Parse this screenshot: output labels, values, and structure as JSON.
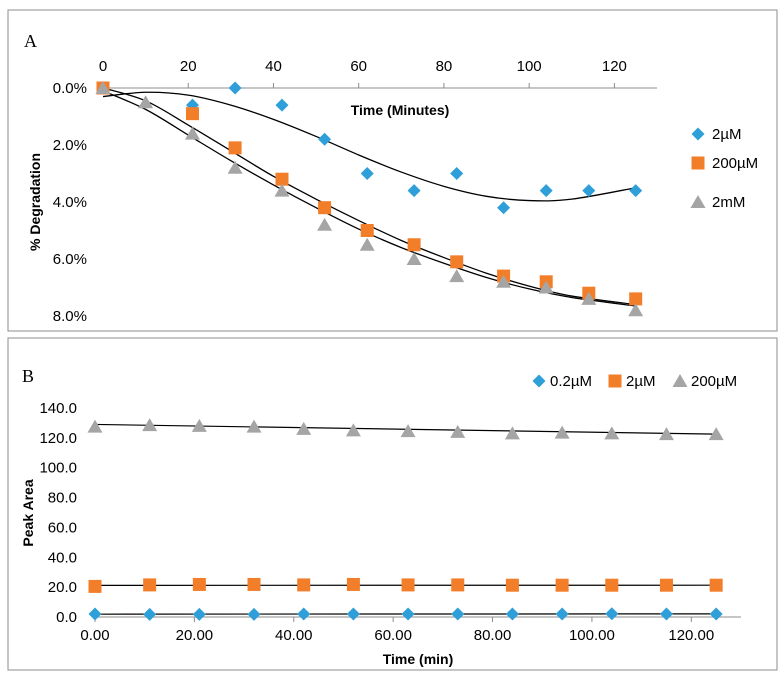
{
  "chart_data": [
    {
      "panel": "A",
      "type": "scatter",
      "xlabel": "Time (Minutes)",
      "ylabel": "% Degradation",
      "xlim": [
        0,
        130
      ],
      "ylim": [
        0,
        8
      ],
      "x_axis_position": "top",
      "y_reversed": true,
      "xticks": [
        "0",
        "20",
        "40",
        "60",
        "80",
        "100",
        "120"
      ],
      "yticks": [
        "0.0%",
        "2.0%",
        "4.0%",
        "6.0%",
        "8.0%"
      ],
      "ytick_values": [
        0,
        2,
        4,
        6,
        8
      ],
      "xtick_values": [
        0,
        20,
        40,
        60,
        80,
        100,
        120
      ],
      "legend_position": "right",
      "series": [
        {
          "name": "2µM",
          "marker": "diamond",
          "color": "#2E9FD8",
          "x": [
            0,
            21,
            31,
            42,
            52,
            62,
            73,
            83,
            94,
            104,
            114,
            125
          ],
          "y": [
            0.0,
            0.6,
            0.0,
            0.6,
            1.8,
            3.0,
            3.6,
            3.0,
            4.2,
            3.6,
            3.6,
            3.6
          ]
        },
        {
          "name": "200µM",
          "marker": "square",
          "color": "#F37E2A",
          "x": [
            0,
            21,
            31,
            42,
            52,
            62,
            73,
            83,
            94,
            104,
            114,
            125
          ],
          "y": [
            0.0,
            0.9,
            2.1,
            3.2,
            4.2,
            5.0,
            5.5,
            6.1,
            6.6,
            6.8,
            7.2,
            7.4
          ]
        },
        {
          "name": "2mM",
          "marker": "triangle",
          "color": "#A5A5A5",
          "x": [
            0,
            10,
            21,
            31,
            42,
            52,
            62,
            73,
            83,
            94,
            104,
            114,
            125
          ],
          "y": [
            0.0,
            0.5,
            1.6,
            2.8,
            3.6,
            4.8,
            5.5,
            6.0,
            6.6,
            6.8,
            7.0,
            7.4,
            7.8
          ]
        }
      ],
      "trendlines": [
        {
          "for": "2µM",
          "kind": "poly3",
          "x": [
            0,
            10,
            20,
            30,
            40,
            50,
            60,
            70,
            80,
            90,
            100,
            110,
            125
          ],
          "y": [
            0.3,
            0.15,
            0.25,
            0.6,
            1.1,
            1.7,
            2.35,
            2.95,
            3.45,
            3.8,
            3.95,
            3.9,
            3.5
          ]
        },
        {
          "for": "200µM",
          "kind": "poly2",
          "x": [
            0,
            10,
            20,
            30,
            40,
            50,
            60,
            70,
            80,
            90,
            100,
            110,
            125
          ],
          "y": [
            0.0,
            0.45,
            1.3,
            2.2,
            3.1,
            3.9,
            4.65,
            5.35,
            5.95,
            6.5,
            6.95,
            7.3,
            7.6
          ]
        },
        {
          "for": "2mM",
          "kind": "poly2",
          "x": [
            0,
            10,
            20,
            30,
            40,
            50,
            60,
            70,
            80,
            90,
            100,
            110,
            125
          ],
          "y": [
            0.1,
            0.75,
            1.65,
            2.55,
            3.4,
            4.2,
            4.95,
            5.6,
            6.15,
            6.65,
            7.05,
            7.35,
            7.65
          ]
        }
      ]
    },
    {
      "panel": "B",
      "type": "scatter",
      "xlabel": "Time (min)",
      "ylabel": "Peak Area",
      "xlim": [
        0,
        130
      ],
      "ylim": [
        0,
        140
      ],
      "xticks": [
        "0.00",
        "20.00",
        "40.00",
        "60.00",
        "80.00",
        "100.00",
        "120.00"
      ],
      "xtick_values": [
        0,
        20,
        40,
        60,
        80,
        100,
        120
      ],
      "yticks": [
        "0.0",
        "20.0",
        "40.0",
        "60.0",
        "80.0",
        "100.0",
        "120.0",
        "140.0"
      ],
      "ytick_values": [
        0,
        20,
        40,
        60,
        80,
        100,
        120,
        140
      ],
      "legend_position": "top-right",
      "series": [
        {
          "name": "0.2µM",
          "marker": "diamond",
          "color": "#2E9FD8",
          "x": [
            0,
            11,
            21,
            32,
            42,
            52,
            63,
            73,
            84,
            94,
            104,
            115,
            125
          ],
          "y": [
            2.0,
            1.8,
            1.8,
            1.8,
            2.0,
            2.0,
            2.0,
            2.0,
            2.0,
            2.0,
            2.2,
            2.0,
            2.0
          ]
        },
        {
          "name": "2µM",
          "marker": "square",
          "color": "#F37E2A",
          "x": [
            0,
            11,
            21,
            32,
            42,
            52,
            63,
            73,
            84,
            94,
            104,
            115,
            125
          ],
          "y": [
            20.5,
            21.5,
            21.8,
            21.8,
            21.5,
            21.8,
            21.5,
            21.5,
            21.3,
            21.3,
            21.3,
            21.3,
            21.3
          ]
        },
        {
          "name": "200µM",
          "marker": "triangle",
          "color": "#A5A5A5",
          "x": [
            0,
            11,
            21,
            32,
            42,
            52,
            63,
            73,
            84,
            94,
            104,
            115,
            125
          ],
          "y": [
            127.5,
            128.5,
            128.0,
            127.5,
            126.0,
            125.0,
            124.5,
            124.0,
            123.0,
            123.5,
            123.0,
            122.5,
            122.5
          ]
        }
      ],
      "trendlines": [
        {
          "for": "0.2µM",
          "kind": "linear",
          "x": [
            0,
            125
          ],
          "y": [
            1.9,
            2.1
          ]
        },
        {
          "for": "2µM",
          "kind": "linear",
          "x": [
            0,
            125
          ],
          "y": [
            21.2,
            21.3
          ]
        },
        {
          "for": "200µM",
          "kind": "linear",
          "x": [
            0,
            125
          ],
          "y": [
            129.0,
            122.5
          ]
        }
      ]
    }
  ]
}
